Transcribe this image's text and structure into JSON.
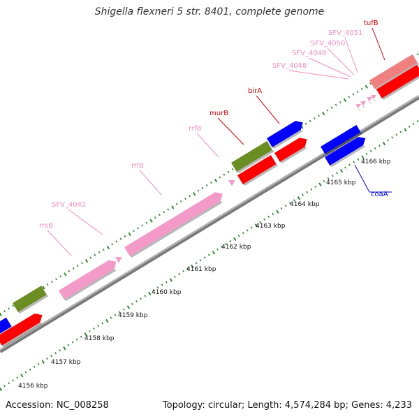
{
  "title": "Shigella flexneri 5 str. 8401, complete genome",
  "footer": {
    "accession": "Accession: NC_008258",
    "summary": "Topology: circular; Length: 4,574,284 bp; Genes: 4,233"
  },
  "colors": {
    "track_green": "#2e8b2e",
    "backbone": "#9a9a9a",
    "red": "#ff0000",
    "blue": "#0000ff",
    "pink": "#f49ac8",
    "olive": "#6b8e23",
    "salmon": "#f08080",
    "label_red": "#cc0000",
    "label_pink": "#f28cc0",
    "label_blue": "#0000cc"
  },
  "scale": {
    "ticks": [
      {
        "label": "4156 kbp"
      },
      {
        "label": "4157 kbp"
      },
      {
        "label": "4158 kbp"
      },
      {
        "label": "4159 kbp"
      },
      {
        "label": "4160 kbp"
      },
      {
        "label": "4161 kbp"
      },
      {
        "label": "4162 kbp"
      },
      {
        "label": "4163 kbp"
      },
      {
        "label": "4164 kbp"
      },
      {
        "label": "4165 kbp"
      },
      {
        "label": "4166 kbp"
      }
    ]
  },
  "gene_labels": [
    {
      "name": "rrsB",
      "color": "pink"
    },
    {
      "name": "SFV_4042",
      "color": "pink"
    },
    {
      "name": "rrlB",
      "color": "pink"
    },
    {
      "name": "rrfB",
      "color": "pink"
    },
    {
      "name": "murB",
      "color": "red"
    },
    {
      "name": "birA",
      "color": "red"
    },
    {
      "name": "SFV_4048",
      "color": "pink"
    },
    {
      "name": "SFV_4049",
      "color": "pink"
    },
    {
      "name": "SFV_4050",
      "color": "pink"
    },
    {
      "name": "SFV_4051",
      "color": "pink"
    },
    {
      "name": "tufB",
      "color": "red"
    },
    {
      "name": "coaA",
      "color": "blue"
    }
  ]
}
